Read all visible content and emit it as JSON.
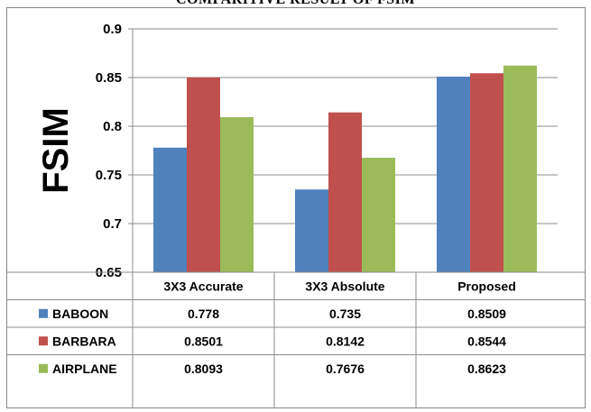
{
  "chart_data": {
    "type": "bar",
    "title": "COMPARITIVE RESULT OF FSIM",
    "ylabel": "FSIM",
    "xlabel": "",
    "categories": [
      "3X3 Accurate",
      "3X3 Absolute",
      "Proposed"
    ],
    "series": [
      {
        "name": "BABOON",
        "color": "#4f81bd",
        "values": [
          0.778,
          0.735,
          0.8509
        ],
        "labels": [
          "0.778",
          "0.735",
          "0.8509"
        ]
      },
      {
        "name": "BARBARA",
        "color": "#c0504d",
        "values": [
          0.8501,
          0.8142,
          0.8544
        ],
        "labels": [
          "0.8501",
          "0.8142",
          "0.8544"
        ]
      },
      {
        "name": "AIRPLANE",
        "color": "#9bbb59",
        "values": [
          0.8093,
          0.7676,
          0.8623
        ],
        "labels": [
          "0.8093",
          "0.7676",
          "0.8623"
        ]
      }
    ],
    "ylim": [
      0.65,
      0.9
    ],
    "yticks": [
      "0.65",
      "0.7",
      "0.75",
      "0.8",
      "0.85",
      "0.9"
    ],
    "grid": true,
    "legend": "data-table"
  }
}
